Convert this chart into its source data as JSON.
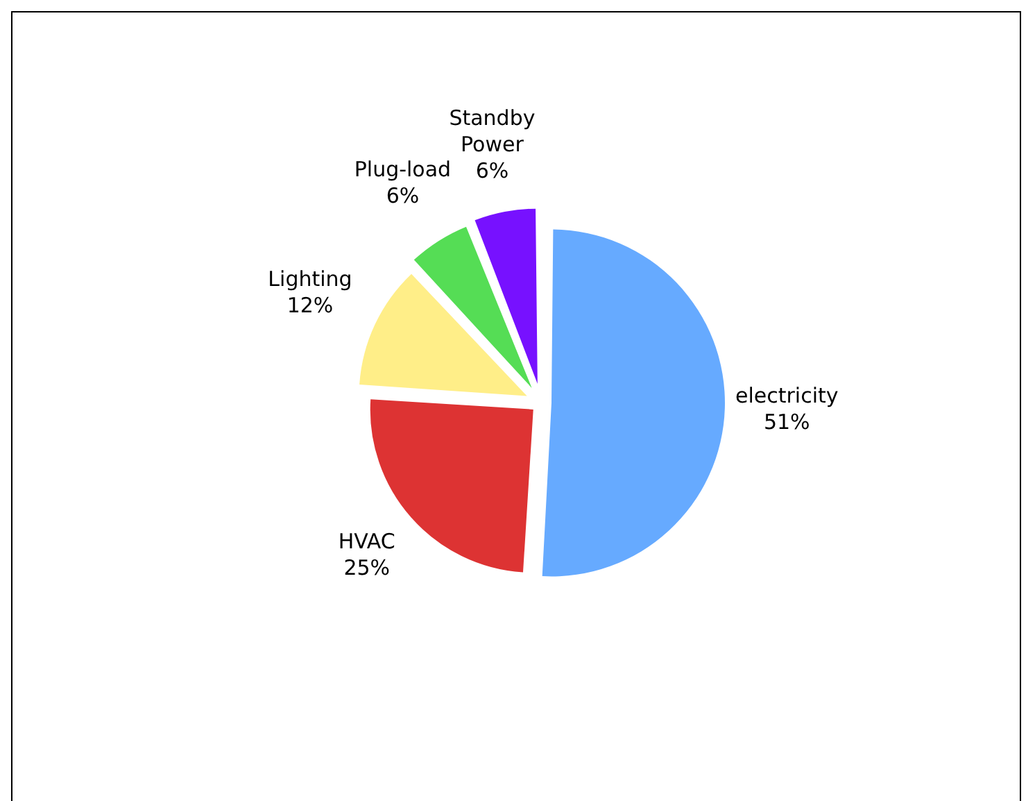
{
  "chart_data": {
    "type": "pie",
    "categories": [
      "electricity",
      "HVAC",
      "Lighting",
      "Plug-load",
      "Standby Power"
    ],
    "values": [
      51,
      25,
      12,
      6,
      6
    ],
    "value_labels": [
      "51%",
      "25%",
      "12%",
      "6%",
      "6%"
    ],
    "colors": [
      "#66aaff",
      "#dd3333",
      "#ffee88",
      "#55dd55",
      "#7711ff"
    ],
    "legend": false
  }
}
